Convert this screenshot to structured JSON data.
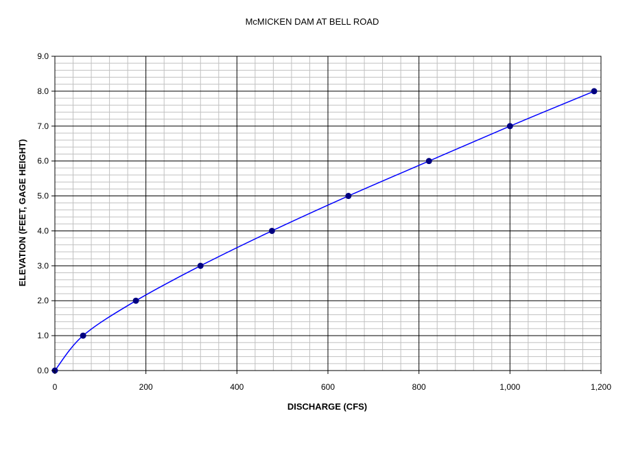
{
  "chart_data": {
    "type": "scatter",
    "title": "McMICKEN DAM AT BELL ROAD",
    "xlabel": "DISCHARGE (CFS)",
    "ylabel": "ELEVATION (FEET, GAGE HEIGHT)",
    "xlim": [
      0,
      1200
    ],
    "ylim": [
      0,
      9
    ],
    "x_ticks": [
      0,
      200,
      400,
      600,
      800,
      1000,
      1200
    ],
    "x_tick_labels": [
      "0",
      "200",
      "400",
      "600",
      "800",
      "1,000",
      "1,200"
    ],
    "y_ticks": [
      0,
      1,
      2,
      3,
      4,
      5,
      6,
      7,
      8,
      9
    ],
    "y_tick_labels": [
      "0.0",
      "1.0",
      "2.0",
      "3.0",
      "4.0",
      "5.0",
      "6.0",
      "7.0",
      "8.0",
      "9.0"
    ],
    "grid": true,
    "minor_grid": true,
    "legend": "none",
    "line_style": "smoothed line with markers",
    "colors": {
      "line": "#0000ff",
      "marker": "#000080",
      "major_grid": "#000000",
      "minor_grid": "#c0c0c0"
    },
    "series": [
      {
        "x": [
          0,
          62,
          178,
          320,
          477,
          645,
          822,
          1000,
          1185
        ],
        "y": [
          0,
          1,
          2,
          3,
          4,
          5,
          6,
          7,
          8
        ]
      }
    ]
  }
}
